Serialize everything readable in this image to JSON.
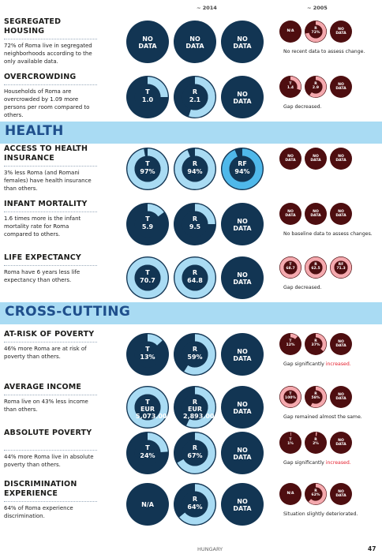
{
  "column_headers": {
    "year_2014": "~ 2014",
    "year_2005": "~ 2005"
  },
  "colors": {
    "navy": "#123553",
    "light_blue": "#a9dbf3",
    "sky": "#4fb8ea",
    "maroon": "#4e0e10",
    "pink": "#f4a9ae",
    "heading_blue": "#1f4f8c",
    "red": "#e5202e"
  },
  "sections": {
    "health": "HEALTH",
    "cross_cutting": "CROSS-CUTTING"
  },
  "rows": [
    {
      "title": "SEGREGATED HOUSING",
      "description": "72% of Roma live in segregated neighborhoods according to the only available data.",
      "c2014": [
        {
          "prefix": "",
          "value": "NO DATA"
        },
        {
          "prefix": "",
          "value": "NO DATA"
        },
        {
          "prefix": "",
          "value": "NO DATA"
        }
      ],
      "c2005": [
        {
          "prefix": "",
          "value": "N/A"
        },
        {
          "prefix": "R",
          "value": "72%"
        },
        {
          "prefix": "",
          "value": "NO DATA"
        }
      ],
      "note": "No recent data to assess change.",
      "note_highlight": ""
    },
    {
      "title": "OVERCROWDING",
      "description": "Households of Roma are overcrowded by 1.09 more persons per room compared to others.",
      "c2014": [
        {
          "prefix": "T",
          "value": "1.0"
        },
        {
          "prefix": "R",
          "value": "2.1"
        },
        {
          "prefix": "",
          "value": "NO DATA"
        }
      ],
      "c2005": [
        {
          "prefix": "T",
          "value": "1.4"
        },
        {
          "prefix": "R",
          "value": "2.9"
        },
        {
          "prefix": "",
          "value": "NO DATA"
        }
      ],
      "note": "Gap decreased.",
      "note_highlight": ""
    },
    {
      "title": "ACCESS TO HEALTH INSURANCE",
      "description": "3% less Roma (and Romani females) have health insurance than others.",
      "c2014": [
        {
          "prefix": "T",
          "value": "97%"
        },
        {
          "prefix": "R",
          "value": "94%"
        },
        {
          "prefix": "RF",
          "value": "94%"
        }
      ],
      "c2005": [
        {
          "prefix": "",
          "value": "NO DATA"
        },
        {
          "prefix": "",
          "value": "NO DATA"
        },
        {
          "prefix": "",
          "value": "NO DATA"
        }
      ],
      "note": "",
      "note_highlight": ""
    },
    {
      "title": "INFANT MORTALITY",
      "description": "1.6 times more is the infant mortality rate for Roma compared to others.",
      "c2014": [
        {
          "prefix": "T",
          "value": "5.9"
        },
        {
          "prefix": "R",
          "value": "9.5"
        },
        {
          "prefix": "",
          "value": "NO DATA"
        }
      ],
      "c2005": [
        {
          "prefix": "",
          "value": "NO DATA"
        },
        {
          "prefix": "",
          "value": "NO DATA"
        },
        {
          "prefix": "",
          "value": "NO DATA"
        }
      ],
      "note": "No baseline data to assess changes.",
      "note_highlight": ""
    },
    {
      "title": "LIFE EXPECTANCY",
      "description": "Roma have 6 years less life expectancy than others.",
      "c2014": [
        {
          "prefix": "T",
          "value": "70.7"
        },
        {
          "prefix": "R",
          "value": "64.8"
        },
        {
          "prefix": "",
          "value": "NO DATA"
        }
      ],
      "c2005": [
        {
          "prefix": "T",
          "value": "68.7"
        },
        {
          "prefix": "R",
          "value": "62.5"
        },
        {
          "prefix": "RF",
          "value": "71.3"
        }
      ],
      "note": "Gap decreased.",
      "note_highlight": ""
    },
    {
      "title": "AT-RISK OF POVERTY",
      "description": "46% more Roma are at risk of poverty than others.",
      "c2014": [
        {
          "prefix": "T",
          "value": "13%"
        },
        {
          "prefix": "R",
          "value": "59%"
        },
        {
          "prefix": "",
          "value": "NO DATA"
        }
      ],
      "c2005": [
        {
          "prefix": "T",
          "value": "12%"
        },
        {
          "prefix": "R",
          "value": "37%"
        },
        {
          "prefix": "",
          "value": "NO DATA"
        }
      ],
      "note": "Gap significantly ",
      "note_highlight": "increased."
    },
    {
      "title": "AVERAGE INCOME",
      "description": "Roma live on 43% less income than others.",
      "c2014": [
        {
          "prefix": "T",
          "value": "EUR 5,073.00"
        },
        {
          "prefix": "R",
          "value": "EUR 2,893.00"
        },
        {
          "prefix": "",
          "value": "NO DATA"
        }
      ],
      "c2005": [
        {
          "prefix": "T",
          "value": "100%"
        },
        {
          "prefix": "R",
          "value": "58%"
        },
        {
          "prefix": "",
          "value": "NO DATA"
        }
      ],
      "note": "Gap remained almost the same.",
      "note_highlight": ""
    },
    {
      "title": "ABSOLUTE POVERTY",
      "description": "44% more Roma live in absolute poverty than others.",
      "c2014": [
        {
          "prefix": "T",
          "value": "24%"
        },
        {
          "prefix": "R",
          "value": "67%"
        },
        {
          "prefix": "",
          "value": "NO DATA"
        }
      ],
      "c2005": [
        {
          "prefix": "T",
          "value": "1%"
        },
        {
          "prefix": "R",
          "value": "2%"
        },
        {
          "prefix": "",
          "value": "NO DATA"
        }
      ],
      "note": "Gap significantly ",
      "note_highlight": "increased."
    },
    {
      "title": "DISCRIMINATION EXPERIENCE",
      "description": "64% of Roma experience discrimination.",
      "c2014": [
        {
          "prefix": "",
          "value": "N/A"
        },
        {
          "prefix": "R",
          "value": "64%"
        },
        {
          "prefix": "",
          "value": "NO DATA"
        }
      ],
      "c2005": [
        {
          "prefix": "",
          "value": "N/A"
        },
        {
          "prefix": "R",
          "value": "62%"
        },
        {
          "prefix": "",
          "value": "NO DATA"
        }
      ],
      "note": "Situation slightly deteriorated.",
      "note_highlight": ""
    }
  ],
  "gauges": {
    "c2014": [
      [
        null,
        null,
        null
      ],
      [
        0.25,
        0.55,
        null
      ],
      [
        0.97,
        0.94,
        0.94
      ],
      [
        0.15,
        0.25,
        null
      ],
      [
        1.0,
        1.0,
        null
      ],
      [
        0.13,
        0.59,
        null
      ],
      [
        1.0,
        0.57,
        null
      ],
      [
        0.24,
        0.67,
        null
      ],
      [
        null,
        0.64,
        null
      ]
    ],
    "c2005": [
      [
        null,
        0.72,
        null
      ],
      [
        0.3,
        0.6,
        null
      ],
      [
        null,
        null,
        null
      ],
      [
        null,
        null,
        null
      ],
      [
        1.0,
        1.0,
        1.0
      ],
      [
        0.12,
        0.37,
        null
      ],
      [
        1.0,
        0.58,
        null
      ],
      [
        0.01,
        0.02,
        null
      ],
      [
        null,
        0.62,
        null
      ]
    ]
  },
  "footer": {
    "country": "HUNGARY",
    "page": "47"
  }
}
